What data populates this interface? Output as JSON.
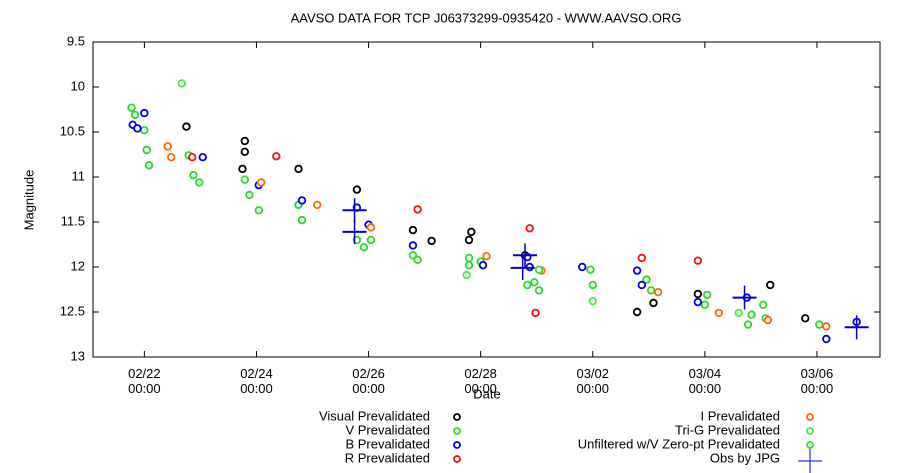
{
  "chart_data": {
    "type": "scatter",
    "title": "AAVSO DATA FOR TCP J06373299-0935420 - WWW.AAVSO.ORG",
    "x_label": "Date",
    "y_label": "Magnitude",
    "y_inverted": true,
    "legend": "bottom",
    "xlim": [
      "02/21 02:00",
      "03/07 03:00"
    ],
    "xticks": [
      "02/22 00:00",
      "02/24 00:00",
      "02/26 00:00",
      "02/28 00:00",
      "03/02 00:00",
      "03/04 00:00",
      "03/06 00:00"
    ],
    "ylim": [
      9.5,
      13
    ],
    "yticks": [
      9.5,
      10,
      10.5,
      11,
      11.5,
      12,
      12.5,
      13
    ],
    "series": [
      {
        "name": "Visual Prevalidated",
        "color": "#000000",
        "marker": "circle",
        "x": [
          "02/22 18:00",
          "02/23 19:00",
          "02/23 19:00",
          "02/23 18:00",
          "02/24 18:00",
          "02/25 19:00",
          "02/26 19:00",
          "02/27 03:00",
          "02/27 19:00",
          "02/27 20:00",
          "02/28 19:00",
          "03/02 19:00",
          "03/03 02:00",
          "03/03 21:00",
          "03/05 04:00",
          "03/05 19:00"
        ],
        "values": [
          10.44,
          10.6,
          10.72,
          10.91,
          10.91,
          11.14,
          11.59,
          11.71,
          11.7,
          11.61,
          11.87,
          12.5,
          12.4,
          12.3,
          12.2,
          12.57
        ]
      },
      {
        "name": "V Prevalidated",
        "color": "#22dd22",
        "marker": "circle",
        "x": [
          "02/21 18:30",
          "02/21 20:00",
          "02/22 00:00",
          "02/22 01:00",
          "02/22 02:00",
          "02/22 19:00",
          "02/22 21:00",
          "02/22 23:30",
          "02/23 19:00",
          "02/23 21:00",
          "02/24 01:00",
          "02/24 18:00",
          "02/24 19:30",
          "02/25 19:00",
          "02/25 22:00",
          "02/26 01:00",
          "02/26 19:00",
          "02/26 21:00",
          "02/27 19:00",
          "02/28 00:00",
          "02/28 20:00",
          "02/28 23:00",
          "03/01 01:00",
          "03/01 23:00",
          "03/02 00:00",
          "03/02 23:00",
          "03/03 01:00",
          "03/04 00:00",
          "03/04 01:00",
          "03/04 18:30",
          "03/04 20:00",
          "03/05 01:00",
          "03/05 02:00",
          "03/06 01:00"
        ],
        "values": [
          10.23,
          10.31,
          10.48,
          10.7,
          10.87,
          10.76,
          10.98,
          11.06,
          11.03,
          11.2,
          11.37,
          11.31,
          11.48,
          11.7,
          11.78,
          11.7,
          11.87,
          11.92,
          11.98,
          11.94,
          12.2,
          12.17,
          12.26,
          12.03,
          12.2,
          12.14,
          12.26,
          12.42,
          12.31,
          12.64,
          12.53,
          12.42,
          12.57,
          12.64
        ]
      },
      {
        "name": "B Prevalidated",
        "color": "#0000ee",
        "marker": "circle",
        "x": [
          "02/21 19:00",
          "02/21 21:00",
          "02/22 00:00",
          "02/23 01:00",
          "02/24 01:00",
          "02/24 19:30",
          "02/25 19:00",
          "02/26 00:00",
          "02/26 19:00",
          "02/28 01:00",
          "02/28 20:00",
          "02/28 21:00",
          "03/01 19:30",
          "03/02 19:00",
          "03/02 21:00",
          "03/03 21:00",
          "03/04 18:00",
          "03/06 04:00",
          "03/06 17:00"
        ],
        "values": [
          10.42,
          10.46,
          10.29,
          10.78,
          11.09,
          11.26,
          11.34,
          11.53,
          11.76,
          11.98,
          11.89,
          12.0,
          12.0,
          12.04,
          12.2,
          12.39,
          12.34,
          12.8,
          12.61
        ]
      },
      {
        "name": "R Prevalidated",
        "color": "#ee1111",
        "marker": "circle",
        "x": [
          "02/22 20:30",
          "02/24 08:30",
          "02/26 21:00",
          "02/28 21:00",
          "02/28 23:30",
          "03/02 21:00",
          "03/03 21:00"
        ],
        "values": [
          10.78,
          10.77,
          11.36,
          11.57,
          12.51,
          11.9,
          11.93
        ]
      },
      {
        "name": "I Prevalidated",
        "color": "#ff6600",
        "marker": "circle",
        "x": [
          "02/22 10:00",
          "02/22 11:30",
          "02/24 02:00",
          "02/25 02:00",
          "02/26 01:00",
          "02/28 02:30",
          "03/01 02:00",
          "03/03 04:00",
          "03/04 06:00",
          "03/05 03:00",
          "03/06 04:00"
        ],
        "values": [
          10.66,
          10.78,
          11.06,
          11.31,
          11.56,
          11.88,
          12.04,
          12.28,
          12.51,
          12.59,
          12.66
        ]
      },
      {
        "name": "Tri-G Prevalidated",
        "color": "#44ee44",
        "marker": "circle",
        "x": [
          "02/22 16:00",
          "02/27 18:00",
          "03/02 00:00",
          "03/04 14:30"
        ],
        "values": [
          9.96,
          12.09,
          12.38,
          12.51
        ]
      },
      {
        "name": "Unfiltered w/V Zero-pt Prevalidated",
        "color": "#33dd33",
        "marker": "circle",
        "x": [
          "02/27 19:00",
          "03/01 01:00"
        ],
        "values": [
          11.9,
          12.03
        ]
      },
      {
        "name": "Obs by JPG",
        "color": "#0000cc",
        "marker": "cross",
        "x": [
          "02/25 18:00",
          "02/25 18:00",
          "02/28 19:00",
          "02/28 18:00",
          "03/04 17:00",
          "03/06 17:00"
        ],
        "values": [
          11.37,
          11.61,
          11.87,
          12.01,
          12.34,
          12.67
        ]
      }
    ]
  }
}
